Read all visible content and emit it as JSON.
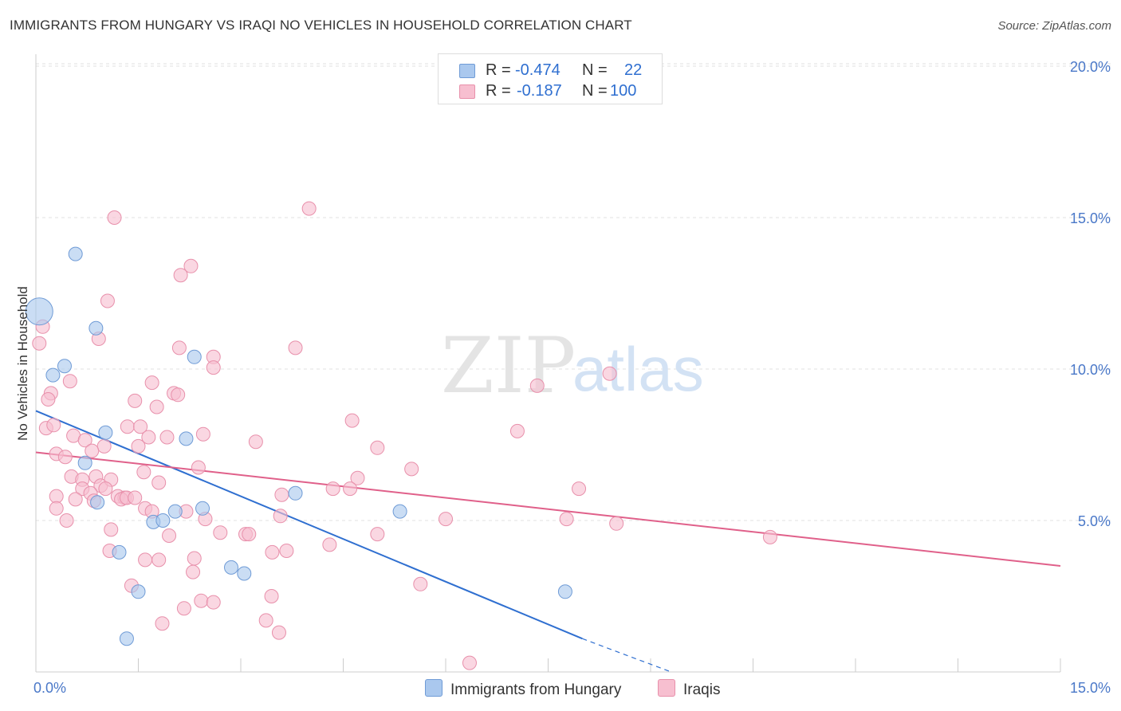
{
  "title": "IMMIGRANTS FROM HUNGARY VS IRAQI NO VEHICLES IN HOUSEHOLD CORRELATION CHART",
  "source": "Source: ZipAtlas.com",
  "watermark": {
    "zip": "ZIP",
    "atlas": "atlas"
  },
  "legend_top": [
    {
      "r_label": "R =",
      "r_value": "-0.474",
      "n_label": "N =",
      "n_value": "22",
      "color": "#aac8ee",
      "border": "#6f9bd6"
    },
    {
      "r_label": "R =",
      "r_value": "-0.187",
      "n_label": "N =",
      "n_value": "100",
      "color": "#f7bfd0",
      "border": "#e890ab"
    }
  ],
  "legend_bottom": [
    {
      "label": "Immigrants from Hungary",
      "color": "#aac8ee"
    },
    {
      "label": "Iraqis",
      "color": "#f7bfd0"
    }
  ],
  "chart_data": {
    "type": "scatter",
    "title": "IMMIGRANTS FROM HUNGARY VS IRAQI NO VEHICLES IN HOUSEHOLD CORRELATION CHART",
    "xlabel": "",
    "ylabel": "No Vehicles in Household",
    "xlim": [
      0,
      15
    ],
    "ylim": [
      0,
      20
    ],
    "x_tick_labels": [
      "0.0%",
      "15.0%"
    ],
    "y_tick_values": [
      5,
      10,
      15,
      20
    ],
    "y_tick_labels": [
      "5.0%",
      "10.0%",
      "15.0%",
      "20.0%"
    ],
    "series": [
      {
        "name": "Immigrants from Hungary",
        "color": "#aac8ee",
        "stroke": "#6f9bd6",
        "trend": {
          "x0": 0,
          "y0": 8.62,
          "x1": 8.0,
          "y1": 1.1,
          "dash_to_x": 9.3,
          "dash_to_y": 0.0,
          "color": "#2f6fd0"
        },
        "points": [
          {
            "x": 0.05,
            "y": 11.9,
            "big": true
          },
          {
            "x": 0.58,
            "y": 13.8
          },
          {
            "x": 0.88,
            "y": 11.35
          },
          {
            "x": 0.25,
            "y": 9.8
          },
          {
            "x": 0.42,
            "y": 10.1
          },
          {
            "x": 1.02,
            "y": 7.9
          },
          {
            "x": 0.72,
            "y": 6.9
          },
          {
            "x": 2.32,
            "y": 10.4
          },
          {
            "x": 2.2,
            "y": 7.7
          },
          {
            "x": 1.72,
            "y": 4.95
          },
          {
            "x": 1.86,
            "y": 5.0
          },
          {
            "x": 2.04,
            "y": 5.3
          },
          {
            "x": 2.44,
            "y": 5.4
          },
          {
            "x": 3.8,
            "y": 5.9
          },
          {
            "x": 5.33,
            "y": 5.3
          },
          {
            "x": 1.22,
            "y": 3.95
          },
          {
            "x": 2.86,
            "y": 3.45
          },
          {
            "x": 3.05,
            "y": 3.25
          },
          {
            "x": 1.5,
            "y": 2.65
          },
          {
            "x": 7.75,
            "y": 2.65
          },
          {
            "x": 1.33,
            "y": 1.1
          },
          {
            "x": 0.9,
            "y": 5.6
          }
        ]
      },
      {
        "name": "Iraqis",
        "color": "#f7bfd0",
        "stroke": "#e890ab",
        "trend": {
          "x0": 0,
          "y0": 7.25,
          "x1": 15,
          "y1": 3.5,
          "color": "#e0608a"
        },
        "points": [
          {
            "x": 0.1,
            "y": 11.4
          },
          {
            "x": 0.05,
            "y": 10.85
          },
          {
            "x": 1.15,
            "y": 15.0
          },
          {
            "x": 4.0,
            "y": 15.3
          },
          {
            "x": 2.27,
            "y": 13.4
          },
          {
            "x": 2.12,
            "y": 13.1
          },
          {
            "x": 1.05,
            "y": 12.25
          },
          {
            "x": 0.92,
            "y": 11.0
          },
          {
            "x": 2.1,
            "y": 10.7
          },
          {
            "x": 3.8,
            "y": 10.7
          },
          {
            "x": 2.6,
            "y": 10.4
          },
          {
            "x": 2.6,
            "y": 10.05
          },
          {
            "x": 0.5,
            "y": 9.6
          },
          {
            "x": 0.22,
            "y": 9.2
          },
          {
            "x": 0.18,
            "y": 9.0
          },
          {
            "x": 1.7,
            "y": 9.55
          },
          {
            "x": 2.02,
            "y": 9.2
          },
          {
            "x": 2.08,
            "y": 9.15
          },
          {
            "x": 1.45,
            "y": 8.95
          },
          {
            "x": 1.77,
            "y": 8.75
          },
          {
            "x": 7.34,
            "y": 9.45
          },
          {
            "x": 8.4,
            "y": 9.85
          },
          {
            "x": 0.15,
            "y": 8.05
          },
          {
            "x": 0.26,
            "y": 8.15
          },
          {
            "x": 1.34,
            "y": 8.1
          },
          {
            "x": 1.53,
            "y": 8.1
          },
          {
            "x": 4.63,
            "y": 8.3
          },
          {
            "x": 7.05,
            "y": 7.95
          },
          {
            "x": 0.55,
            "y": 7.8
          },
          {
            "x": 0.72,
            "y": 7.65
          },
          {
            "x": 1.65,
            "y": 7.75
          },
          {
            "x": 1.92,
            "y": 7.75
          },
          {
            "x": 2.45,
            "y": 7.85
          },
          {
            "x": 3.22,
            "y": 7.6
          },
          {
            "x": 0.3,
            "y": 7.2
          },
          {
            "x": 0.43,
            "y": 7.1
          },
          {
            "x": 1.0,
            "y": 7.45
          },
          {
            "x": 1.5,
            "y": 7.45
          },
          {
            "x": 5.0,
            "y": 7.4
          },
          {
            "x": 0.82,
            "y": 7.3
          },
          {
            "x": 2.38,
            "y": 6.75
          },
          {
            "x": 5.5,
            "y": 6.7
          },
          {
            "x": 0.52,
            "y": 6.45
          },
          {
            "x": 0.68,
            "y": 6.35
          },
          {
            "x": 0.88,
            "y": 6.45
          },
          {
            "x": 0.95,
            "y": 6.15
          },
          {
            "x": 1.1,
            "y": 6.35
          },
          {
            "x": 1.58,
            "y": 6.6
          },
          {
            "x": 1.8,
            "y": 6.25
          },
          {
            "x": 4.71,
            "y": 6.4
          },
          {
            "x": 0.68,
            "y": 6.05
          },
          {
            "x": 0.8,
            "y": 5.9
          },
          {
            "x": 0.85,
            "y": 5.65
          },
          {
            "x": 1.02,
            "y": 6.05
          },
          {
            "x": 1.2,
            "y": 5.8
          },
          {
            "x": 1.3,
            "y": 5.75
          },
          {
            "x": 3.6,
            "y": 5.85
          },
          {
            "x": 4.35,
            "y": 6.05
          },
          {
            "x": 4.6,
            "y": 6.05
          },
          {
            "x": 7.95,
            "y": 6.05
          },
          {
            "x": 0.3,
            "y": 5.8
          },
          {
            "x": 0.58,
            "y": 5.7
          },
          {
            "x": 1.25,
            "y": 5.7
          },
          {
            "x": 1.33,
            "y": 5.75
          },
          {
            "x": 0.3,
            "y": 5.4
          },
          {
            "x": 1.6,
            "y": 5.4
          },
          {
            "x": 2.2,
            "y": 5.3
          },
          {
            "x": 1.7,
            "y": 5.3
          },
          {
            "x": 2.48,
            "y": 5.05
          },
          {
            "x": 3.58,
            "y": 5.15
          },
          {
            "x": 6.0,
            "y": 5.05
          },
          {
            "x": 7.77,
            "y": 5.05
          },
          {
            "x": 8.5,
            "y": 4.9
          },
          {
            "x": 0.45,
            "y": 5.0
          },
          {
            "x": 1.1,
            "y": 4.7
          },
          {
            "x": 1.95,
            "y": 4.5
          },
          {
            "x": 2.7,
            "y": 4.6
          },
          {
            "x": 3.07,
            "y": 4.55
          },
          {
            "x": 3.12,
            "y": 4.55
          },
          {
            "x": 5.0,
            "y": 4.55
          },
          {
            "x": 10.75,
            "y": 4.45
          },
          {
            "x": 4.3,
            "y": 4.2
          },
          {
            "x": 1.08,
            "y": 4.0
          },
          {
            "x": 3.46,
            "y": 3.95
          },
          {
            "x": 3.67,
            "y": 4.0
          },
          {
            "x": 1.6,
            "y": 3.7
          },
          {
            "x": 1.8,
            "y": 3.7
          },
          {
            "x": 2.32,
            "y": 3.75
          },
          {
            "x": 2.3,
            "y": 3.3
          },
          {
            "x": 1.4,
            "y": 2.85
          },
          {
            "x": 5.63,
            "y": 2.9
          },
          {
            "x": 3.45,
            "y": 2.5
          },
          {
            "x": 2.42,
            "y": 2.35
          },
          {
            "x": 2.6,
            "y": 2.3
          },
          {
            "x": 2.17,
            "y": 2.1
          },
          {
            "x": 3.37,
            "y": 1.7
          },
          {
            "x": 1.85,
            "y": 1.6
          },
          {
            "x": 3.56,
            "y": 1.3
          },
          {
            "x": 6.35,
            "y": 0.3
          },
          {
            "x": 1.45,
            "y": 5.75
          }
        ]
      }
    ]
  }
}
